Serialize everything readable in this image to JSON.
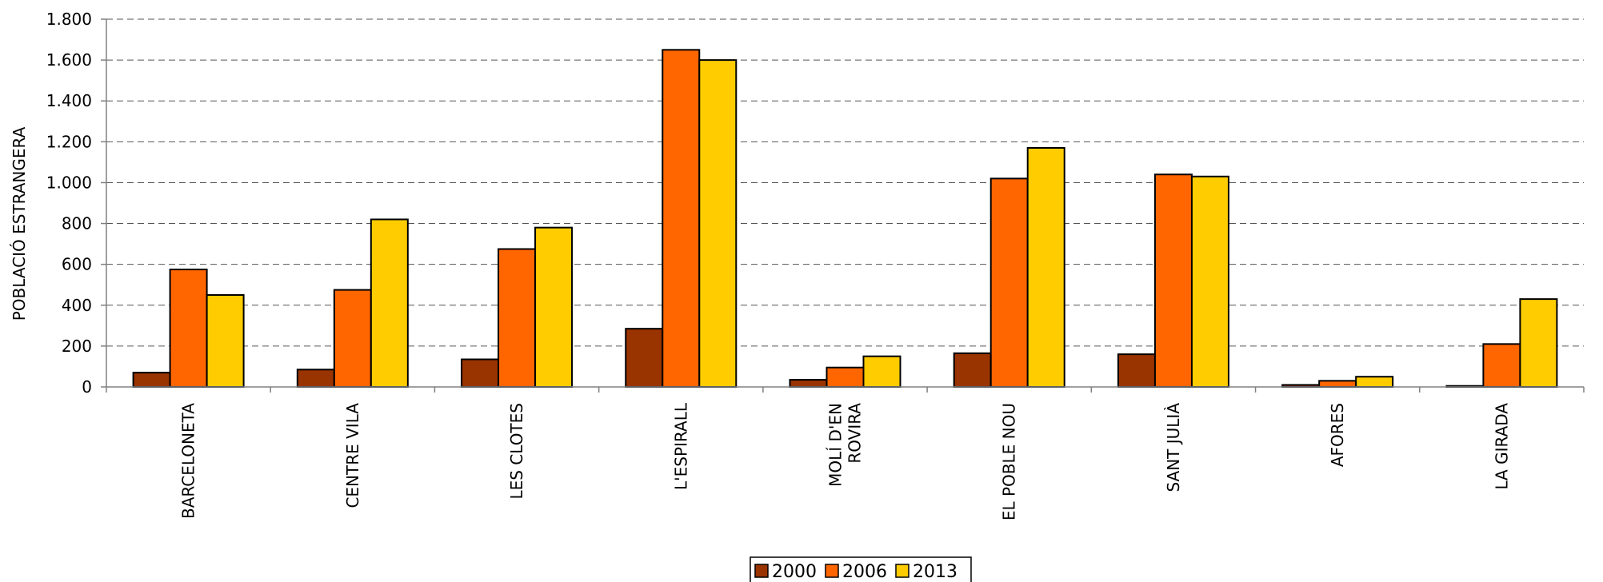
{
  "chart_data": {
    "type": "bar",
    "title": "",
    "xlabel": "",
    "ylabel": "POBLACIÓ ESTRANGERA",
    "ylim": [
      0,
      1800
    ],
    "yticks": [
      0,
      200,
      400,
      600,
      800,
      1000,
      1200,
      1400,
      1600,
      1800
    ],
    "ytick_labels": [
      "0",
      "200",
      "400",
      "600",
      "800",
      "1.000",
      "1.200",
      "1.400",
      "1.600",
      "1.800"
    ],
    "grid": true,
    "legend_position": "bottom",
    "categories": [
      [
        "BARCELONETA"
      ],
      [
        "CENTRE VILA"
      ],
      [
        "LES CLOTES"
      ],
      [
        "L'ESPIRALL"
      ],
      [
        "MOLÍ D'EN",
        "ROVIRA"
      ],
      [
        "EL POBLE NOU"
      ],
      [
        "SANT JULIÀ"
      ],
      [
        "AFORES"
      ],
      [
        "LA GIRADA"
      ]
    ],
    "series": [
      {
        "name": "2000",
        "color": "#993300",
        "values": [
          70,
          85,
          135,
          285,
          35,
          165,
          160,
          10,
          5
        ]
      },
      {
        "name": "2006",
        "color": "#ff6600",
        "values": [
          575,
          475,
          675,
          1650,
          95,
          1020,
          1040,
          30,
          210
        ]
      },
      {
        "name": "2013",
        "color": "#ffcc00",
        "values": [
          450,
          820,
          780,
          1600,
          150,
          1170,
          1030,
          50,
          430
        ]
      }
    ]
  }
}
